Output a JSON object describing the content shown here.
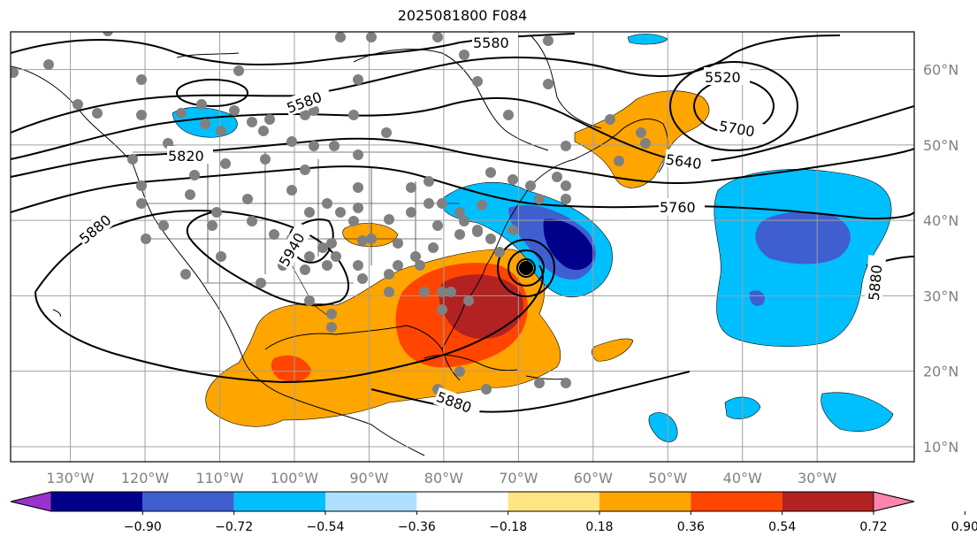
{
  "title": "2025081800 F084",
  "map": {
    "lon_range": [
      -138,
      -17
    ],
    "lat_range": [
      8,
      65
    ],
    "lon_ticks": [
      {
        "value": -130,
        "label": "130°W"
      },
      {
        "value": -120,
        "label": "120°W"
      },
      {
        "value": -110,
        "label": "110°W"
      },
      {
        "value": -100,
        "label": "100°W"
      },
      {
        "value": -90,
        "label": "90°W"
      },
      {
        "value": -80,
        "label": "80°W"
      },
      {
        "value": -70,
        "label": "70°W"
      },
      {
        "value": -60,
        "label": "60°W"
      },
      {
        "value": -50,
        "label": "50°W"
      },
      {
        "value": -40,
        "label": "40°W"
      },
      {
        "value": -30,
        "label": "30°W"
      }
    ],
    "lat_ticks": [
      {
        "value": 10,
        "label": "10°N"
      },
      {
        "value": 20,
        "label": "20°N"
      },
      {
        "value": 30,
        "label": "30°N"
      },
      {
        "value": 40,
        "label": "40°N"
      },
      {
        "value": 50,
        "label": "50°N"
      },
      {
        "value": 60,
        "label": "60°N"
      }
    ],
    "grid": true,
    "contour_labels": [
      "5580",
      "5520",
      "5700",
      "5580",
      "5640",
      "5820",
      "5760",
      "5880",
      "5940",
      "5880",
      "5880"
    ]
  },
  "colorbar": {
    "colors": [
      "#9932cc",
      "#00008b",
      "#3f5fd0",
      "#00bfff",
      "#b0e0ff",
      "#ffffff",
      "#ffe680",
      "#ffa500",
      "#ff4500",
      "#b22222",
      "#ff85b0"
    ],
    "tick_labels": [
      "−0.90",
      "−0.72",
      "−0.54",
      "−0.36",
      "−0.18",
      "0.18",
      "0.36",
      "0.54",
      "0.72",
      "0.90"
    ],
    "extend": "both"
  },
  "chart_data": {
    "type": "heatmap",
    "title": "2025081800 F084",
    "xlabel": "",
    "ylabel": "",
    "x_range": [
      -138,
      -17
    ],
    "y_range": [
      8,
      65
    ],
    "contour_levels": [
      5520,
      5580,
      5640,
      5700,
      5760,
      5820,
      5880,
      5940
    ],
    "color_levels": [
      -0.9,
      -0.72,
      -0.54,
      -0.36,
      -0.18,
      0.18,
      0.36,
      0.54,
      0.72,
      0.9
    ]
  }
}
